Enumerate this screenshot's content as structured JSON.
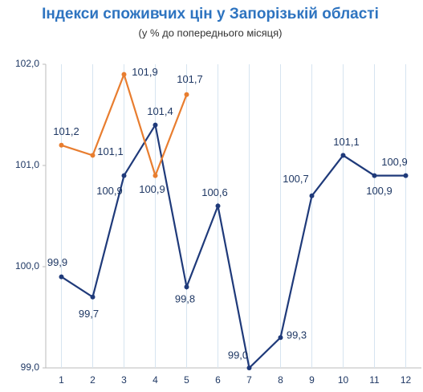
{
  "chart_data": {
    "type": "line",
    "title": "Індекси споживчих цін у Запорізькій області",
    "subtitle": "(у % до попереднього місяця)",
    "categories": [
      "1",
      "2",
      "3",
      "4",
      "5",
      "6",
      "7",
      "8",
      "9",
      "10",
      "11",
      "12"
    ],
    "series": [
      {
        "color": "#1f3a7a",
        "values": [
          99.9,
          99.7,
          100.9,
          101.4,
          99.8,
          100.6,
          99.0,
          99.3,
          100.7,
          101.1,
          100.9,
          100.9
        ],
        "value_labels": [
          "99,9",
          "99,7",
          "100,9",
          "101,4",
          "99,8",
          "100,6",
          "99,0",
          "99,3",
          "100,7",
          "101,1",
          "100,9",
          "100,9"
        ]
      },
      {
        "color": "#e87d2f",
        "values": [
          101.2,
          101.1,
          101.9,
          100.9,
          101.7,
          null,
          null,
          null,
          null,
          null,
          null,
          null
        ],
        "value_labels": [
          "101,2",
          "101,1",
          "101,9",
          "100,9",
          "101,7",
          null,
          null,
          null,
          null,
          null,
          null,
          null
        ]
      }
    ],
    "ylim": [
      99,
      102
    ],
    "yticks": [
      {
        "value": 99,
        "label": "99,0"
      },
      {
        "value": 100,
        "label": "100,0"
      },
      {
        "value": 101,
        "label": "101,0"
      },
      {
        "value": 102,
        "label": "102,0"
      }
    ]
  }
}
